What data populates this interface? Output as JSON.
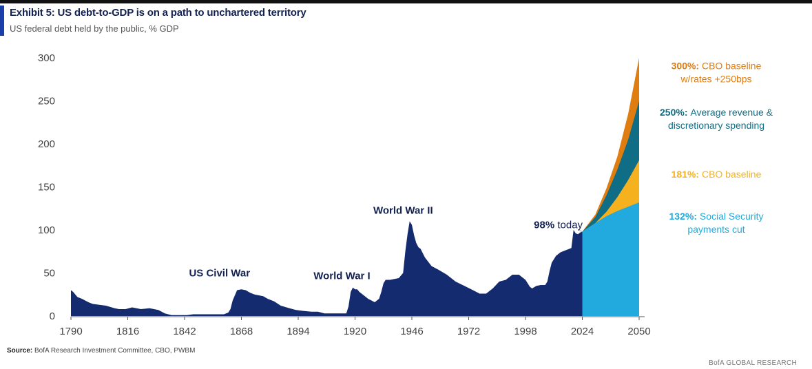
{
  "header": {
    "title": "Exhibit 5: US debt-to-GDP is on a path to unchartered territory",
    "subtitle": "US federal debt held by the public, % GDP"
  },
  "source": {
    "label": "Source:",
    "text": "BofA Research Investment Committee, CBO, PWBM"
  },
  "footer": "BofA GLOBAL RESEARCH",
  "colors": {
    "historical": "#142b6f",
    "cbo_high_rates": "#e07d10",
    "avg_revenue": "#0f6d85",
    "cbo_baseline": "#f5b21e",
    "ss_cut": "#22a9dd"
  },
  "chart_data": {
    "type": "area",
    "title": "Exhibit 5: US debt-to-GDP is on a path to unchartered territory",
    "subtitle": "US federal debt held by the public, % GDP",
    "xlabel": "",
    "ylabel": "",
    "xlim": [
      1790,
      2050
    ],
    "ylim": [
      0,
      300
    ],
    "x_ticks": [
      1790,
      1816,
      1842,
      1868,
      1894,
      1920,
      1946,
      1972,
      1998,
      2024,
      2050
    ],
    "y_ticks": [
      0,
      50,
      100,
      150,
      200,
      250,
      300
    ],
    "grid": false,
    "historical": {
      "x": [
        1790,
        1791,
        1793,
        1795,
        1798,
        1800,
        1803,
        1806,
        1810,
        1812,
        1815,
        1818,
        1822,
        1826,
        1830,
        1833,
        1836,
        1840,
        1843,
        1846,
        1849,
        1852,
        1855,
        1858,
        1860,
        1862,
        1863,
        1864,
        1866,
        1868,
        1870,
        1872,
        1874,
        1876,
        1878,
        1880,
        1883,
        1886,
        1890,
        1893,
        1896,
        1900,
        1903,
        1906,
        1910,
        1914,
        1916,
        1917,
        1918,
        1919,
        1920,
        1921,
        1922,
        1924,
        1926,
        1929,
        1931,
        1932,
        1933,
        1934,
        1936,
        1938,
        1940,
        1942,
        1943,
        1944,
        1945,
        1946,
        1947,
        1948,
        1949,
        1950,
        1952,
        1955,
        1958,
        1962,
        1966,
        1970,
        1974,
        1977,
        1980,
        1983,
        1986,
        1989,
        1992,
        1995,
        1998,
        2000,
        2001,
        2003,
        2005,
        2007,
        2008,
        2009,
        2010,
        2012,
        2014,
        2016,
        2018,
        2019,
        2020,
        2021,
        2022,
        2023,
        2024
      ],
      "y": [
        30,
        28,
        22,
        20,
        16,
        14,
        13,
        12,
        9,
        8,
        8,
        10,
        8,
        9,
        7,
        3,
        1,
        1,
        1,
        2,
        2,
        2,
        2,
        2,
        2,
        4,
        8,
        18,
        30,
        31,
        30,
        27,
        25,
        24,
        23,
        20,
        17,
        12,
        9,
        7,
        6,
        5,
        5,
        3,
        3,
        3,
        3,
        11,
        28,
        33,
        31,
        31,
        28,
        24,
        20,
        16,
        20,
        28,
        38,
        42,
        42,
        43,
        44,
        50,
        75,
        95,
        110,
        106,
        94,
        85,
        80,
        78,
        68,
        58,
        54,
        48,
        40,
        35,
        30,
        26,
        26,
        32,
        40,
        42,
        48,
        48,
        42,
        34,
        32,
        35,
        36,
        36,
        40,
        52,
        62,
        70,
        74,
        76,
        78,
        79,
        100,
        96,
        95,
        97,
        98
      ]
    },
    "series": [
      {
        "name": "CBO baseline w/rates +250bps",
        "x": [
          2024,
          2030,
          2035,
          2040,
          2045,
          2050
        ],
        "values": [
          98,
          118,
          148,
          185,
          235,
          300
        ]
      },
      {
        "name": "Average revenue & discretionary spending",
        "x": [
          2024,
          2030,
          2035,
          2040,
          2045,
          2050
        ],
        "values": [
          98,
          115,
          140,
          170,
          205,
          250
        ]
      },
      {
        "name": "CBO baseline",
        "x": [
          2024,
          2030,
          2035,
          2040,
          2045,
          2050
        ],
        "values": [
          98,
          108,
          121,
          138,
          158,
          181
        ]
      },
      {
        "name": "Social Security payments cut",
        "x": [
          2024,
          2030,
          2035,
          2040,
          2045,
          2050
        ],
        "values": [
          98,
          108,
          116,
          122,
          127,
          132
        ]
      }
    ],
    "event_labels": [
      {
        "text": "US Civil War",
        "x": 1858,
        "y": 46
      },
      {
        "text": "World War I",
        "x": 1914,
        "y": 43
      },
      {
        "text": "World War II",
        "x": 1942,
        "y": 119
      },
      {
        "text": "98% today",
        "x": 2013,
        "y": 102
      }
    ],
    "annotations": [
      {
        "pct": "300%:",
        "lines": [
          "CBO baseline",
          "w/rates +250bps"
        ],
        "color": "#e07d10",
        "y": 287
      },
      {
        "pct": "250%:",
        "lines": [
          "Average revenue &",
          "discretionary spending"
        ],
        "color": "#0f6d85",
        "y": 233
      },
      {
        "pct": "181%:",
        "lines": [
          "CBO baseline"
        ],
        "color": "#f5b21e",
        "y": 161
      },
      {
        "pct": "132%:",
        "lines": [
          "Social Security",
          "payments cut"
        ],
        "color": "#22a9dd",
        "y": 112
      }
    ]
  }
}
